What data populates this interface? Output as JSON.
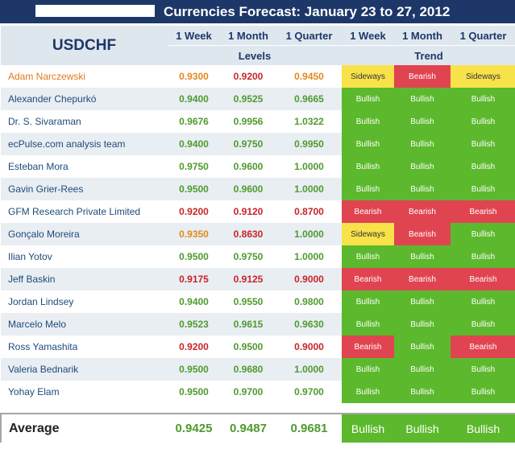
{
  "title": "Currencies Forecast: January 23 to 27, 2012",
  "pair": "USDCHF",
  "periods": [
    "1 Week",
    "1 Month",
    "1 Quarter"
  ],
  "levels_label": "Levels",
  "trend_label": "Trend",
  "colors": {
    "header_bg": "#1d3769",
    "bullish": "#5cb82c",
    "bearish": "#e04451",
    "sideways": "#f8e24a",
    "value_green": "#4f9a2f",
    "value_red": "#c6252a",
    "value_orange": "#e08a1f"
  },
  "rows": [
    {
      "name": "Adam Narczewski",
      "name_style": "orange",
      "levels": [
        "0.9300",
        "0.9200",
        "0.9450"
      ],
      "level_styles": [
        "orange",
        "red",
        "orange"
      ],
      "trends": [
        "Sideways",
        "Bearish",
        "Sideways"
      ]
    },
    {
      "name": "Alexander Chepurkó",
      "name_style": "",
      "levels": [
        "0.9400",
        "0.9525",
        "0.9665"
      ],
      "level_styles": [
        "green",
        "green",
        "green"
      ],
      "trends": [
        "Bullish",
        "Bullish",
        "Bullish"
      ]
    },
    {
      "name": "Dr. S. Sivaraman",
      "name_style": "",
      "levels": [
        "0.9676",
        "0.9956",
        "1.0322"
      ],
      "level_styles": [
        "green",
        "green",
        "green"
      ],
      "trends": [
        "Bullish",
        "Bullish",
        "Bullish"
      ]
    },
    {
      "name": "ecPulse.com analysis team",
      "name_style": "",
      "levels": [
        "0.9400",
        "0.9750",
        "0.9950"
      ],
      "level_styles": [
        "green",
        "green",
        "green"
      ],
      "trends": [
        "Bullish",
        "Bullish",
        "Bullish"
      ]
    },
    {
      "name": "Esteban Mora",
      "name_style": "",
      "levels": [
        "0.9750",
        "0.9600",
        "1.0000"
      ],
      "level_styles": [
        "green",
        "green",
        "green"
      ],
      "trends": [
        "Bullish",
        "Bullish",
        "Bullish"
      ]
    },
    {
      "name": "Gavin Grier-Rees",
      "name_style": "",
      "levels": [
        "0.9500",
        "0.9600",
        "1.0000"
      ],
      "level_styles": [
        "green",
        "green",
        "green"
      ],
      "trends": [
        "Bullish",
        "Bullish",
        "Bullish"
      ]
    },
    {
      "name": "GFM Research Private Limited",
      "name_style": "",
      "levels": [
        "0.9200",
        "0.9120",
        "0.8700"
      ],
      "level_styles": [
        "red",
        "red",
        "red"
      ],
      "trends": [
        "Bearish",
        "Bearish",
        "Bearish"
      ]
    },
    {
      "name": "Gonçalo Moreira",
      "name_style": "",
      "levels": [
        "0.9350",
        "0.8630",
        "1.0000"
      ],
      "level_styles": [
        "orange",
        "red",
        "green"
      ],
      "trends": [
        "Sideways",
        "Bearish",
        "Bullish"
      ]
    },
    {
      "name": "Ilian Yotov",
      "name_style": "",
      "levels": [
        "0.9500",
        "0.9750",
        "1.0000"
      ],
      "level_styles": [
        "green",
        "green",
        "green"
      ],
      "trends": [
        "Bullish",
        "Bullish",
        "Bullish"
      ]
    },
    {
      "name": "Jeff Baskin",
      "name_style": "",
      "levels": [
        "0.9175",
        "0.9125",
        "0.9000"
      ],
      "level_styles": [
        "red",
        "red",
        "red"
      ],
      "trends": [
        "Bearish",
        "Bearish",
        "Bearish"
      ]
    },
    {
      "name": "Jordan Lindsey",
      "name_style": "",
      "levels": [
        "0.9400",
        "0.9550",
        "0.9800"
      ],
      "level_styles": [
        "green",
        "green",
        "green"
      ],
      "trends": [
        "Bullish",
        "Bullish",
        "Bullish"
      ]
    },
    {
      "name": "Marcelo Melo",
      "name_style": "",
      "levels": [
        "0.9523",
        "0.9615",
        "0.9630"
      ],
      "level_styles": [
        "green",
        "green",
        "green"
      ],
      "trends": [
        "Bullish",
        "Bullish",
        "Bullish"
      ]
    },
    {
      "name": "Ross Yamashita",
      "name_style": "",
      "levels": [
        "0.9200",
        "0.9500",
        "0.9000"
      ],
      "level_styles": [
        "red",
        "green",
        "red"
      ],
      "trends": [
        "Bearish",
        "Bullish",
        "Bearish"
      ]
    },
    {
      "name": "Valeria Bednarik",
      "name_style": "",
      "levels": [
        "0.9500",
        "0.9680",
        "1.0000"
      ],
      "level_styles": [
        "green",
        "green",
        "green"
      ],
      "trends": [
        "Bullish",
        "Bullish",
        "Bullish"
      ]
    },
    {
      "name": "Yohay Elam",
      "name_style": "",
      "levels": [
        "0.9500",
        "0.9700",
        "0.9700"
      ],
      "level_styles": [
        "green",
        "green",
        "green"
      ],
      "trends": [
        "Bullish",
        "Bullish",
        "Bullish"
      ]
    }
  ],
  "average": {
    "label": "Average",
    "levels": [
      "0.9425",
      "0.9487",
      "0.9681"
    ],
    "trends": [
      "Bullish",
      "Bullish",
      "Bullish"
    ]
  }
}
